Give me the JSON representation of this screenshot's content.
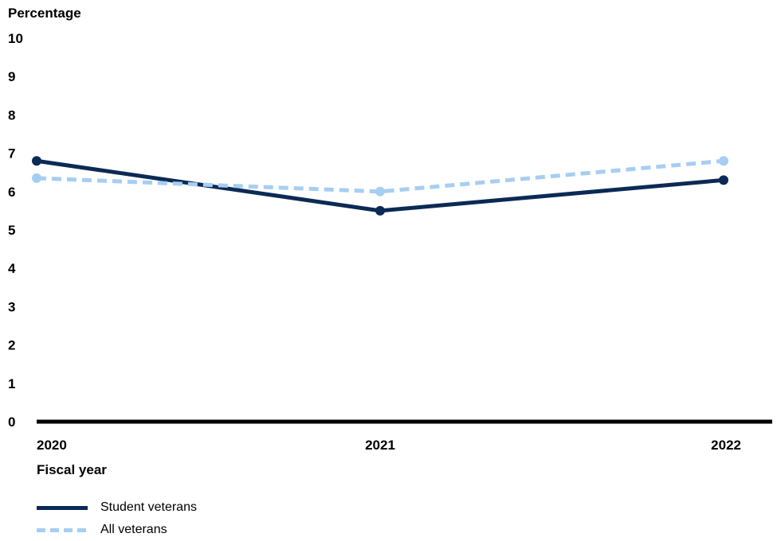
{
  "chart_data": {
    "type": "line",
    "ylabel": "Percentage",
    "xlabel": "Fiscal year",
    "categories": [
      "2020",
      "2021",
      "2022"
    ],
    "ylim": [
      0,
      10
    ],
    "yticks": [
      0,
      1,
      2,
      3,
      4,
      5,
      6,
      7,
      8,
      9,
      10
    ],
    "grid": false,
    "legend_position": "bottom-left",
    "series": [
      {
        "name": "Student veterans",
        "values": [
          6.8,
          5.5,
          6.3
        ],
        "color": "#0b2a55",
        "style": "solid"
      },
      {
        "name": "All veterans",
        "values": [
          6.35,
          6.0,
          6.8
        ],
        "color": "#a6cef3",
        "style": "dashed"
      }
    ]
  }
}
